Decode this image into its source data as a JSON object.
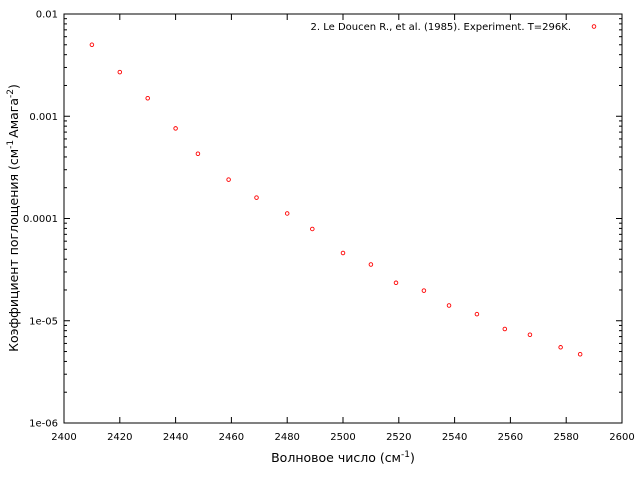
{
  "chart_data": {
    "type": "scatter",
    "xlabel": "Волновое число (см",
    "xlabel_sup": "-1",
    "xlabel_end": ")",
    "ylabel_parts": [
      "Коэффициент поглощения (см",
      "-1",
      "Амага",
      "-2",
      ")"
    ],
    "xlim": [
      2400,
      2600
    ],
    "ylim": [
      1e-06,
      0.01
    ],
    "yscale": "log",
    "x_ticks": [
      "2400",
      "2420",
      "2440",
      "2460",
      "2480",
      "2500",
      "2520",
      "2540",
      "2560",
      "2580",
      "2600"
    ],
    "y_ticks": [
      "1e-06",
      "1e-05",
      "0.0001",
      "0.001",
      "0.01"
    ],
    "legend_position": "top-right",
    "series": [
      {
        "name": "2. Le Doucen R., et al. (1985). Experiment. T=296K.",
        "color": "#ff0000",
        "marker": "open-circle",
        "x": [
          2410,
          2420,
          2430,
          2440,
          2448,
          2459,
          2469,
          2480,
          2489,
          2500,
          2510,
          2519,
          2529,
          2538,
          2548,
          2558,
          2567,
          2578,
          2585
        ],
        "y": [
          0.005,
          0.0027,
          0.0015,
          0.00076,
          0.00043,
          0.00024,
          0.00016,
          0.000112,
          7.9e-05,
          4.6e-05,
          3.55e-05,
          2.35e-05,
          1.97e-05,
          1.41e-05,
          1.16e-05,
          8.3e-06,
          7.3e-06,
          5.5e-06,
          4.7e-06
        ]
      }
    ]
  }
}
